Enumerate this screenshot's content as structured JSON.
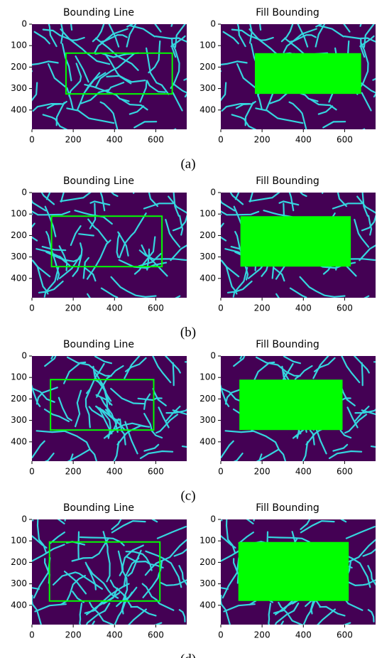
{
  "chart_data": [
    {
      "type": "image",
      "title": "Bounding Line",
      "xlim": [
        0,
        750
      ],
      "ylim": [
        490,
        0
      ],
      "xticks": [
        0,
        200,
        400,
        600
      ],
      "yticks": [
        0,
        100,
        200,
        300,
        400
      ],
      "box": {
        "x": [
          165,
          680
        ],
        "y": [
          135,
          325
        ]
      },
      "fill": false,
      "color": "#00ff00"
    },
    {
      "type": "image",
      "title": "Fill Bounding",
      "xlim": [
        0,
        750
      ],
      "ylim": [
        490,
        0
      ],
      "xticks": [
        0,
        200,
        400,
        600
      ],
      "yticks": [
        0,
        100,
        200,
        300,
        400
      ],
      "box": {
        "x": [
          165,
          680
        ],
        "y": [
          135,
          325
        ]
      },
      "fill": true,
      "color": "#00ff00"
    },
    {
      "type": "image",
      "title": "Bounding Line",
      "xlim": [
        0,
        750
      ],
      "ylim": [
        490,
        0
      ],
      "xticks": [
        0,
        200,
        400,
        600
      ],
      "yticks": [
        0,
        100,
        200,
        300,
        400
      ],
      "box": {
        "x": [
          95,
          630
        ],
        "y": [
          110,
          345
        ]
      },
      "fill": false,
      "color": "#00ff00"
    },
    {
      "type": "image",
      "title": "Fill Bounding",
      "xlim": [
        0,
        750
      ],
      "ylim": [
        490,
        0
      ],
      "xticks": [
        0,
        200,
        400,
        600
      ],
      "yticks": [
        0,
        100,
        200,
        300,
        400
      ],
      "box": {
        "x": [
          95,
          630
        ],
        "y": [
          110,
          345
        ]
      },
      "fill": true,
      "color": "#00ff00"
    },
    {
      "type": "image",
      "title": "Bounding Line",
      "xlim": [
        0,
        750
      ],
      "ylim": [
        490,
        0
      ],
      "xticks": [
        0,
        200,
        400,
        600
      ],
      "yticks": [
        0,
        100,
        200,
        300,
        400
      ],
      "box": {
        "x": [
          90,
          590
        ],
        "y": [
          110,
          345
        ]
      },
      "fill": false,
      "color": "#00ff00"
    },
    {
      "type": "image",
      "title": "Fill Bounding",
      "xlim": [
        0,
        750
      ],
      "ylim": [
        490,
        0
      ],
      "xticks": [
        0,
        200,
        400,
        600
      ],
      "yticks": [
        0,
        100,
        200,
        300,
        400
      ],
      "box": {
        "x": [
          90,
          590
        ],
        "y": [
          110,
          345
        ]
      },
      "fill": true,
      "color": "#00ff00"
    },
    {
      "type": "image",
      "title": "Bounding Line",
      "xlim": [
        0,
        750
      ],
      "ylim": [
        490,
        0
      ],
      "xticks": [
        0,
        200,
        400,
        600
      ],
      "yticks": [
        0,
        100,
        200,
        300,
        400
      ],
      "box": {
        "x": [
          85,
          620
        ],
        "y": [
          105,
          380
        ]
      },
      "fill": false,
      "color": "#00ff00"
    },
    {
      "type": "image",
      "title": "Fill Bounding",
      "xlim": [
        0,
        750
      ],
      "ylim": [
        490,
        0
      ],
      "xticks": [
        0,
        200,
        400,
        600
      ],
      "yticks": [
        0,
        100,
        200,
        300,
        400
      ],
      "box": {
        "x": [
          85,
          620
        ],
        "y": [
          105,
          380
        ]
      },
      "fill": true,
      "color": "#00ff00"
    }
  ],
  "captions": [
    "(a)",
    "(b)",
    "(c)",
    "(d)"
  ]
}
